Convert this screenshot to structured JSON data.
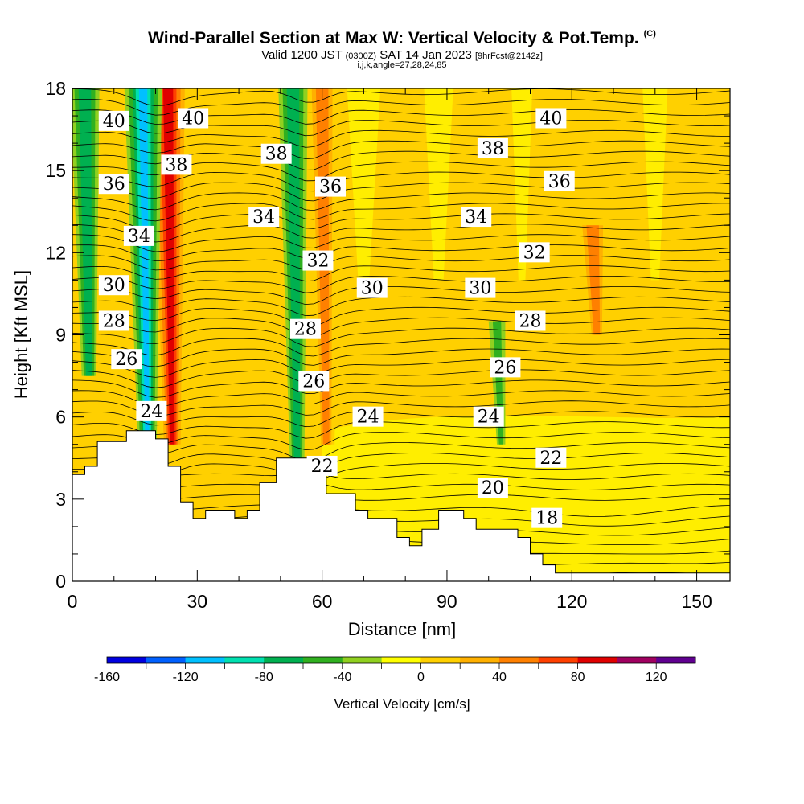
{
  "title": {
    "main": "Wind-Parallel Section at Max W: Vertical Velocity & Pot.Temp.",
    "corner": "(C)"
  },
  "subtitle": {
    "valid": "Valid 1200 JST",
    "zulu": "(0300Z)",
    "date": "SAT 14 Jan 2023",
    "fcst": "[9hrFcst@2142z]"
  },
  "indices": "i,j,k,angle=27,28,24,85",
  "chart_data": {
    "type": "heatmap",
    "xlabel": "Distance [nm]",
    "ylabel": "Height [Kft MSL]",
    "xlim": [
      0,
      158
    ],
    "ylim": [
      0,
      18
    ],
    "x_ticks": [
      "0",
      "30",
      "60",
      "90",
      "120",
      "150"
    ],
    "y_ticks": [
      "0",
      "3",
      "6",
      "9",
      "12",
      "15",
      "18"
    ],
    "colorbar": {
      "label": "Vertical Velocity [cm/s]",
      "range": [
        -160,
        140
      ],
      "step": 20,
      "tick_labels": [
        "-160",
        "-120",
        "-80",
        "-40",
        "0",
        "40",
        "80",
        "120"
      ],
      "colors": [
        "#0000e0",
        "#0060ff",
        "#00c0ff",
        "#00e0b0",
        "#00b050",
        "#30b020",
        "#90d020",
        "#ffff00",
        "#ffd000",
        "#ffb000",
        "#ff8000",
        "#ff4000",
        "#e00000",
        "#a00060",
        "#600090"
      ]
    },
    "theta_contour_labels": [
      {
        "value": "40",
        "x": 10,
        "y": 16.8
      },
      {
        "value": "40",
        "x": 29,
        "y": 16.9
      },
      {
        "value": "40",
        "x": 115,
        "y": 16.9
      },
      {
        "value": "38",
        "x": 25,
        "y": 15.2
      },
      {
        "value": "38",
        "x": 49,
        "y": 15.6
      },
      {
        "value": "38",
        "x": 101,
        "y": 15.8
      },
      {
        "value": "36",
        "x": 10,
        "y": 14.5
      },
      {
        "value": "36",
        "x": 62,
        "y": 14.4
      },
      {
        "value": "36",
        "x": 117,
        "y": 14.6
      },
      {
        "value": "34",
        "x": 16,
        "y": 12.6
      },
      {
        "value": "34",
        "x": 46,
        "y": 13.3
      },
      {
        "value": "34",
        "x": 97,
        "y": 13.3
      },
      {
        "value": "32",
        "x": 59,
        "y": 11.7
      },
      {
        "value": "32",
        "x": 111,
        "y": 12.0
      },
      {
        "value": "30",
        "x": 10,
        "y": 10.8
      },
      {
        "value": "30",
        "x": 72,
        "y": 10.7
      },
      {
        "value": "30",
        "x": 98,
        "y": 10.7
      },
      {
        "value": "28",
        "x": 10,
        "y": 9.5
      },
      {
        "value": "28",
        "x": 56,
        "y": 9.2
      },
      {
        "value": "28",
        "x": 110,
        "y": 9.5
      },
      {
        "value": "26",
        "x": 13,
        "y": 8.1
      },
      {
        "value": "26",
        "x": 58,
        "y": 7.3
      },
      {
        "value": "26",
        "x": 104,
        "y": 7.8
      },
      {
        "value": "24",
        "x": 19,
        "y": 6.2
      },
      {
        "value": "24",
        "x": 71,
        "y": 6.0
      },
      {
        "value": "24",
        "x": 100,
        "y": 6.0
      },
      {
        "value": "22",
        "x": 60,
        "y": 4.2
      },
      {
        "value": "22",
        "x": 115,
        "y": 4.5
      },
      {
        "value": "20",
        "x": 101,
        "y": 3.4
      },
      {
        "value": "18",
        "x": 114,
        "y": 2.3
      }
    ],
    "updraft_bands": [
      {
        "name": "red-updraft",
        "x": 23,
        "top": 18,
        "bottom": 5,
        "w_max": 80
      },
      {
        "name": "orange-updraft",
        "x": 60,
        "top": 18,
        "bottom": 5,
        "w_max": 40
      },
      {
        "name": "orange-updraft",
        "x": 125,
        "top": 13,
        "bottom": 9,
        "w_max": 40
      }
    ],
    "downdraft_bands": [
      {
        "name": "green-downdraft",
        "x": 3,
        "top": 18,
        "bottom": 7.5,
        "w_min": -60
      },
      {
        "name": "green-downdraft",
        "x": 17,
        "top": 18,
        "bottom": 5,
        "w_min": -100
      },
      {
        "name": "green-downdraft",
        "x": 53,
        "top": 18,
        "bottom": 4.5,
        "w_min": -60
      },
      {
        "name": "green-downdraft",
        "x": 102,
        "top": 9.5,
        "bottom": 5,
        "w_min": -40
      }
    ],
    "terrain": [
      [
        0,
        3.9
      ],
      [
        3,
        3.9
      ],
      [
        3,
        4.2
      ],
      [
        6,
        4.2
      ],
      [
        6,
        5.1
      ],
      [
        13,
        5.1
      ],
      [
        13,
        5.5
      ],
      [
        20,
        5.5
      ],
      [
        20,
        5.2
      ],
      [
        23,
        5.2
      ],
      [
        23,
        4.2
      ],
      [
        26,
        4.2
      ],
      [
        26,
        2.9
      ],
      [
        29,
        2.9
      ],
      [
        29,
        2.3
      ],
      [
        32,
        2.3
      ],
      [
        32,
        2.6
      ],
      [
        39,
        2.6
      ],
      [
        39,
        2.3
      ],
      [
        42,
        2.3
      ],
      [
        42,
        2.6
      ],
      [
        45,
        2.6
      ],
      [
        45,
        3.6
      ],
      [
        49,
        3.6
      ],
      [
        49,
        4.5
      ],
      [
        61,
        4.5
      ],
      [
        61,
        3.2
      ],
      [
        68,
        3.2
      ],
      [
        68,
        2.6
      ],
      [
        71,
        2.6
      ],
      [
        71,
        2.3
      ],
      [
        78,
        2.3
      ],
      [
        78,
        1.6
      ],
      [
        81,
        1.6
      ],
      [
        81,
        1.3
      ],
      [
        84,
        1.3
      ],
      [
        84,
        1.9
      ],
      [
        88,
        1.9
      ],
      [
        88,
        2.6
      ],
      [
        94,
        2.6
      ],
      [
        94,
        2.3
      ],
      [
        97,
        2.3
      ],
      [
        97,
        1.9
      ],
      [
        107,
        1.9
      ],
      [
        107,
        1.6
      ],
      [
        110,
        1.6
      ],
      [
        110,
        1.0
      ],
      [
        113,
        1.0
      ],
      [
        113,
        0.6
      ],
      [
        116,
        0.6
      ],
      [
        116,
        0.3
      ],
      [
        158,
        0.3
      ]
    ]
  }
}
